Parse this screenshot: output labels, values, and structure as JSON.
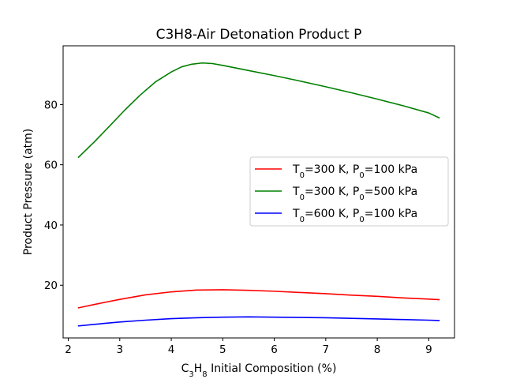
{
  "chart_data": {
    "type": "line",
    "title": "C3H8-Air Detonation Product P",
    "xlabel": {
      "base": "C",
      "sub1": "3",
      "mid": "H",
      "sub2": "8",
      "rest": " Initial Composition (%)"
    },
    "ylabel": "Product Pressure (atm)",
    "xlim": [
      1.9,
      9.5
    ],
    "ylim": [
      2.5,
      99.5
    ],
    "xticks": [
      2,
      3,
      4,
      5,
      6,
      7,
      8,
      9
    ],
    "yticks": [
      20,
      40,
      60,
      80
    ],
    "grid": false,
    "legend_position": "center-right",
    "series": [
      {
        "name": {
          "t": "T",
          "ts": "0",
          "mid": "=300 K, P",
          "ps": "0",
          "rest": "=100 kPa"
        },
        "color": "#ff0000",
        "x": [
          2.2,
          2.5,
          3.0,
          3.5,
          4.0,
          4.5,
          5.0,
          5.5,
          6.0,
          6.5,
          7.0,
          7.5,
          8.0,
          8.5,
          9.0,
          9.2
        ],
        "y": [
          12.5,
          13.6,
          15.3,
          16.8,
          17.8,
          18.4,
          18.5,
          18.3,
          18.0,
          17.6,
          17.2,
          16.7,
          16.3,
          15.8,
          15.4,
          15.2
        ]
      },
      {
        "name": {
          "t": "T",
          "ts": "0",
          "mid": "=300 K, P",
          "ps": "0",
          "rest": "=500 kPa"
        },
        "color": "#008000",
        "x": [
          2.2,
          2.5,
          2.8,
          3.1,
          3.4,
          3.7,
          4.0,
          4.2,
          4.4,
          4.6,
          4.8,
          5.0,
          5.5,
          6.0,
          6.5,
          7.0,
          7.5,
          8.0,
          8.5,
          9.0,
          9.2
        ],
        "y": [
          62.5,
          67.5,
          72.8,
          78.2,
          83.2,
          87.6,
          90.8,
          92.5,
          93.4,
          93.8,
          93.6,
          93.0,
          91.3,
          89.6,
          87.8,
          85.9,
          83.9,
          81.8,
          79.6,
          77.2,
          75.6
        ]
      },
      {
        "name": {
          "t": "T",
          "ts": "0",
          "mid": "=600 K, P",
          "ps": "0",
          "rest": "=100 kPa"
        },
        "color": "#0000ff",
        "x": [
          2.2,
          2.5,
          3.0,
          3.5,
          4.0,
          4.5,
          5.0,
          5.5,
          6.0,
          6.5,
          7.0,
          7.5,
          8.0,
          8.5,
          9.0,
          9.2
        ],
        "y": [
          6.5,
          7.0,
          7.8,
          8.4,
          8.9,
          9.2,
          9.4,
          9.5,
          9.4,
          9.3,
          9.2,
          9.0,
          8.8,
          8.6,
          8.4,
          8.3
        ]
      }
    ]
  }
}
